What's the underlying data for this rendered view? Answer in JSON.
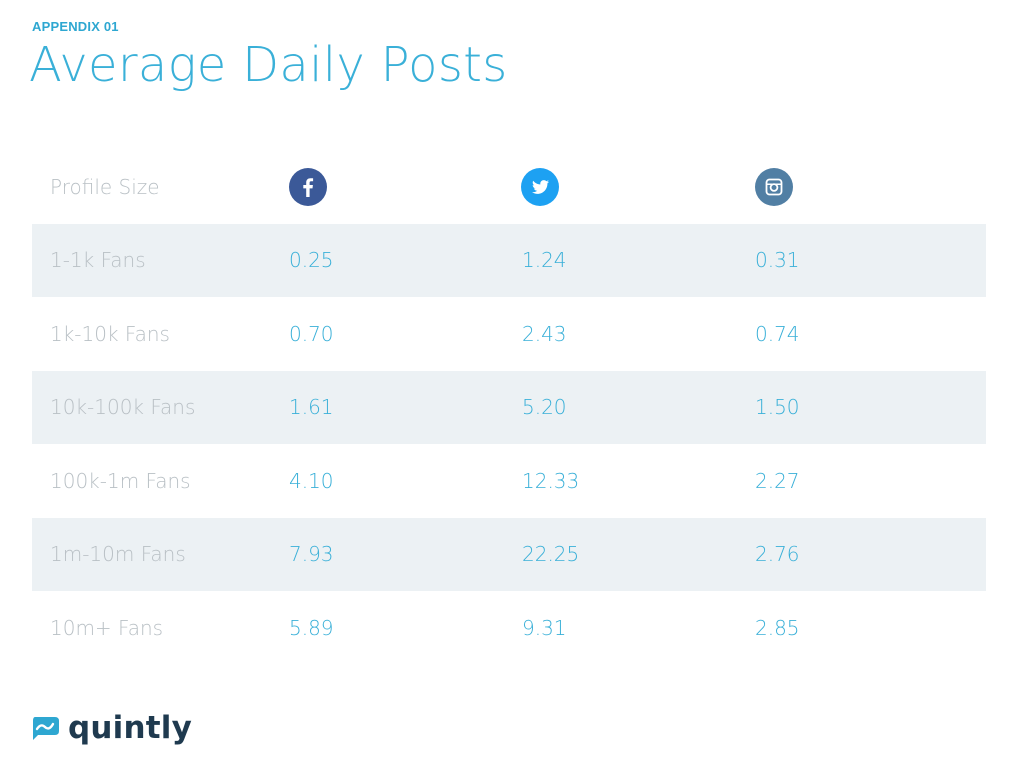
{
  "header": {
    "eyebrow": "APPENDIX 01",
    "title": "Average Daily Posts"
  },
  "table": {
    "column_header": "Profile Size",
    "columns": [
      {
        "icon": "facebook-icon",
        "color": "#3b5998"
      },
      {
        "icon": "twitter-icon",
        "color": "#1da1f2"
      },
      {
        "icon": "instagram-icon",
        "color": "#517fa4"
      }
    ],
    "rows": [
      {
        "label": "1-1k Fans",
        "values": [
          "0.25",
          "1.24",
          "0.31"
        ]
      },
      {
        "label": "1k-10k Fans",
        "values": [
          "0.70",
          "2.43",
          "0.74"
        ]
      },
      {
        "label": "10k-100k Fans",
        "values": [
          "1.61",
          "5.20",
          "1.50"
        ]
      },
      {
        "label": "100k-1m Fans",
        "values": [
          "4.10",
          "12.33",
          "2.27"
        ]
      },
      {
        "label": "1m-10m Fans",
        "values": [
          "7.93",
          "22.25",
          "2.76"
        ]
      },
      {
        "label": "10m+ Fans",
        "values": [
          "5.89",
          "9.31",
          "2.85"
        ]
      }
    ]
  },
  "footer": {
    "logo_text": "quintly",
    "logo_icon": "quintly-logo-icon"
  },
  "colors": {
    "accent": "#3ab0d8",
    "label_gray": "#b9c0c5",
    "row_shade": "#ecf1f4",
    "logo_dark": "#1f3a4f"
  }
}
